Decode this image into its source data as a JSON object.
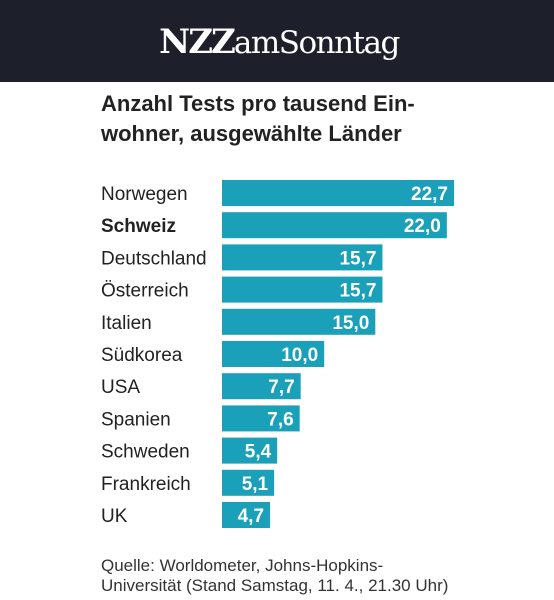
{
  "header": {
    "logo_strong": "NZZ",
    "logo_rest": "amSonntag",
    "background": "#1d1f2a"
  },
  "chart_data": {
    "type": "bar",
    "orientation": "horizontal",
    "title": "Anzahl Tests pro tausend Ein-wohner, ausgewählte Länder",
    "categories": [
      "Norwegen",
      "Schweiz",
      "Deutschland",
      "Österreich",
      "Italien",
      "Südkorea",
      "USA",
      "Spanien",
      "Schweden",
      "Frankreich",
      "UK"
    ],
    "values": [
      22.7,
      22.0,
      15.7,
      15.7,
      15.0,
      10.0,
      7.7,
      7.6,
      5.4,
      5.1,
      4.7
    ],
    "value_labels": [
      "22,7",
      "22,0",
      "15,7",
      "15,7",
      "15,0",
      "10,0",
      "7,7",
      "7,6",
      "5,4",
      "5,1",
      "4,7"
    ],
    "highlighted_category": "Schweiz",
    "bar_color": "#1aa0b8",
    "label_color": "#ffffff",
    "xlim": [
      0,
      22.7
    ],
    "grid": false,
    "legend": "none"
  },
  "texts": {
    "title_line1": "Anzahl Tests pro tausend Ein-",
    "title_line2": "wohner, ausgewählte Länder",
    "source_line1": "Quelle: Worldometer, Johns-Hopkins-",
    "source_line2": "Universität (Stand Samstag, 11. 4., 21.30 Uhr)"
  }
}
